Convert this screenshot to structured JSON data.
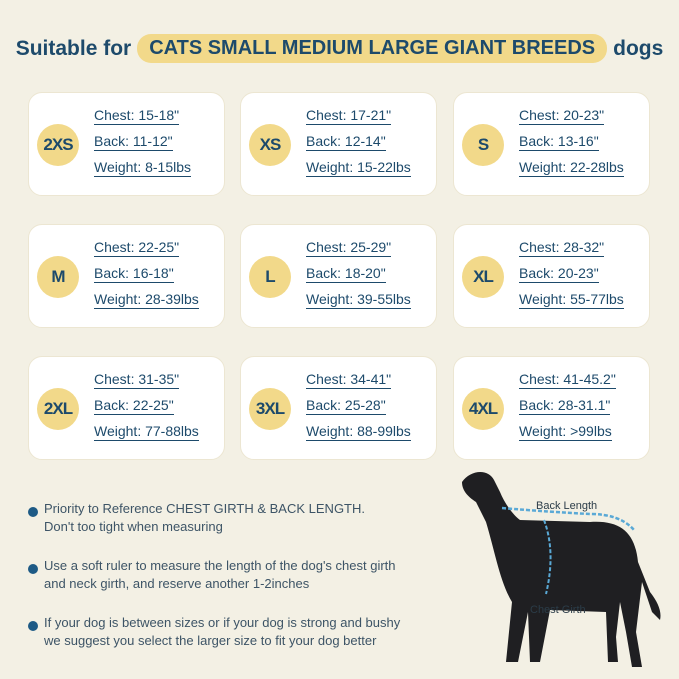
{
  "header": {
    "prefix": "Suitable for",
    "highlight": "CATS SMALL MEDIUM LARGE GIANT BREEDS",
    "suffix": "dogs"
  },
  "sizes": [
    {
      "size": "2XS",
      "chest": "Chest: 15-18\"",
      "back": "Back: 11-12\"",
      "weight": "Weight: 8-15lbs"
    },
    {
      "size": "XS",
      "chest": "Chest: 17-21\"",
      "back": "Back: 12-14\"",
      "weight": "Weight: 15-22lbs"
    },
    {
      "size": "S",
      "chest": "Chest: 20-23\"",
      "back": "Back: 13-16\"",
      "weight": "Weight: 22-28lbs"
    },
    {
      "size": "M",
      "chest": "Chest: 22-25\"",
      "back": "Back: 16-18\"",
      "weight": "Weight: 28-39lbs"
    },
    {
      "size": "L",
      "chest": "Chest: 25-29\"",
      "back": "Back: 18-20\"",
      "weight": "Weight: 39-55lbs"
    },
    {
      "size": "XL",
      "chest": "Chest: 28-32\"",
      "back": "Back: 20-23\"",
      "weight": "Weight: 55-77lbs"
    },
    {
      "size": "2XL",
      "chest": "Chest: 31-35\"",
      "back": "Back: 22-25\"",
      "weight": "Weight: 77-88lbs"
    },
    {
      "size": "3XL",
      "chest": "Chest: 34-41\"",
      "back": "Back: 25-28\"",
      "weight": "Weight: 88-99lbs"
    },
    {
      "size": "4XL",
      "chest": "Chest: 41-45.2\"",
      "back": "Back: 28-31.1\"",
      "weight": "Weight: >99lbs"
    }
  ],
  "tips": [
    {
      "line1": "Priority to Reference CHEST GIRTH & BACK LENGTH.",
      "line2": "Don't too tight when measuring"
    },
    {
      "line1": "Use a soft ruler to measure the length of the dog's chest girth",
      "line2": "and neck girth, and reserve another 1-2inches"
    },
    {
      "line1": "If your dog is between sizes or if your dog is strong and bushy",
      "line2": "we suggest you select the larger size to fit your dog better"
    }
  ],
  "diagram": {
    "back_label": "Back Length",
    "chest_label": "Chest Girth"
  },
  "colors": {
    "background": "#f3f0e4",
    "accent": "#f2d98a",
    "text": "#1d4a6b"
  }
}
